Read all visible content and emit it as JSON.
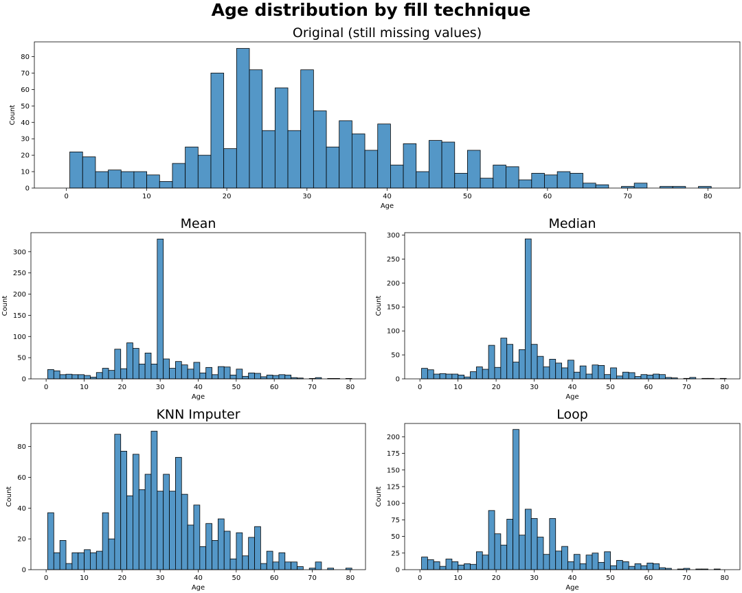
{
  "figure": {
    "title": "Age distribution by fill technique",
    "bar_color": "#5497c7",
    "edge_color": "#000000"
  },
  "chart_data": [
    {
      "type": "bar",
      "title": "Original (still missing values)",
      "xlabel": "Age",
      "ylabel": "Count",
      "xlim": [
        -4,
        84
      ],
      "ylim": [
        0,
        89
      ],
      "xticks": [
        0,
        10,
        20,
        30,
        40,
        50,
        60,
        70,
        80
      ],
      "yticks": [
        0,
        10,
        20,
        30,
        40,
        50,
        60,
        70,
        80
      ],
      "bin_start": 0.42,
      "bin_width": 1.6,
      "values": [
        22,
        19,
        10,
        11,
        10,
        10,
        8,
        4,
        15,
        25,
        20,
        70,
        24,
        85,
        72,
        35,
        61,
        35,
        72,
        47,
        25,
        41,
        33,
        23,
        39,
        14,
        27,
        10,
        29,
        28,
        9,
        23,
        6,
        14,
        13,
        5,
        9,
        8,
        10,
        9,
        3,
        2,
        0,
        1,
        3,
        0,
        1,
        1,
        0,
        1
      ]
    },
    {
      "type": "bar",
      "title": "Mean",
      "xlabel": "Age",
      "ylabel": "Count",
      "xlim": [
        -4,
        84
      ],
      "ylim": [
        0,
        345
      ],
      "xticks": [
        0,
        10,
        20,
        30,
        40,
        50,
        60,
        70,
        80
      ],
      "yticks": [
        0,
        50,
        100,
        150,
        200,
        250,
        300
      ],
      "bin_start": 0.42,
      "bin_width": 1.6,
      "values": [
        22,
        19,
        10,
        11,
        10,
        10,
        8,
        4,
        15,
        25,
        20,
        70,
        24,
        85,
        72,
        35,
        61,
        35,
        330,
        47,
        25,
        41,
        33,
        23,
        39,
        14,
        27,
        10,
        29,
        28,
        9,
        23,
        6,
        14,
        13,
        5,
        9,
        8,
        10,
        9,
        3,
        2,
        0,
        1,
        3,
        0,
        1,
        1,
        0,
        1
      ]
    },
    {
      "type": "bar",
      "title": "Median",
      "xlabel": "Age",
      "ylabel": "Count",
      "xlim": [
        -4,
        84
      ],
      "ylim": [
        0,
        305
      ],
      "xticks": [
        0,
        10,
        20,
        30,
        40,
        50,
        60,
        70,
        80
      ],
      "yticks": [
        0,
        50,
        100,
        150,
        200,
        250,
        300
      ],
      "bin_start": 0.42,
      "bin_width": 1.6,
      "values": [
        22,
        19,
        10,
        11,
        10,
        10,
        8,
        4,
        15,
        25,
        20,
        70,
        24,
        85,
        72,
        35,
        61,
        292,
        72,
        47,
        25,
        41,
        33,
        23,
        39,
        14,
        27,
        10,
        29,
        28,
        9,
        23,
        6,
        14,
        13,
        5,
        9,
        8,
        10,
        9,
        3,
        2,
        0,
        1,
        3,
        0,
        1,
        1,
        0,
        1
      ]
    },
    {
      "type": "bar",
      "title": "KNN Imputer",
      "xlabel": "Age",
      "ylabel": "Count",
      "xlim": [
        -4,
        84
      ],
      "ylim": [
        0,
        95
      ],
      "xticks": [
        0,
        10,
        20,
        30,
        40,
        50,
        60,
        70,
        80
      ],
      "yticks": [
        0,
        20,
        40,
        60,
        80
      ],
      "bin_start": 0.42,
      "bin_width": 1.6,
      "values": [
        37,
        11,
        19,
        4,
        11,
        11,
        13,
        11,
        12,
        37,
        20,
        88,
        77,
        48,
        75,
        52,
        62,
        90,
        51,
        62,
        51,
        73,
        49,
        29,
        42,
        15,
        30,
        19,
        33,
        25,
        7,
        24,
        9,
        21,
        28,
        4,
        12,
        5,
        11,
        5,
        5,
        2,
        0,
        1,
        5,
        0,
        1,
        0,
        0,
        1
      ]
    },
    {
      "type": "bar",
      "title": "Loop",
      "xlabel": "Age",
      "ylabel": "Count",
      "xlim": [
        -4,
        84
      ],
      "ylim": [
        0,
        220
      ],
      "xticks": [
        0,
        10,
        20,
        30,
        40,
        50,
        60,
        70,
        80
      ],
      "yticks": [
        0,
        25,
        50,
        75,
        100,
        125,
        150,
        175,
        200
      ],
      "bin_start": 0.42,
      "bin_width": 1.6,
      "values": [
        19,
        15,
        12,
        5,
        16,
        12,
        7,
        9,
        8,
        27,
        22,
        89,
        54,
        37,
        76,
        211,
        52,
        91,
        77,
        49,
        23,
        77,
        28,
        35,
        12,
        23,
        9,
        22,
        25,
        11,
        27,
        6,
        14,
        12,
        5,
        9,
        6,
        10,
        9,
        3,
        2,
        0,
        1,
        2,
        0,
        1,
        1,
        0,
        1,
        0
      ]
    }
  ]
}
